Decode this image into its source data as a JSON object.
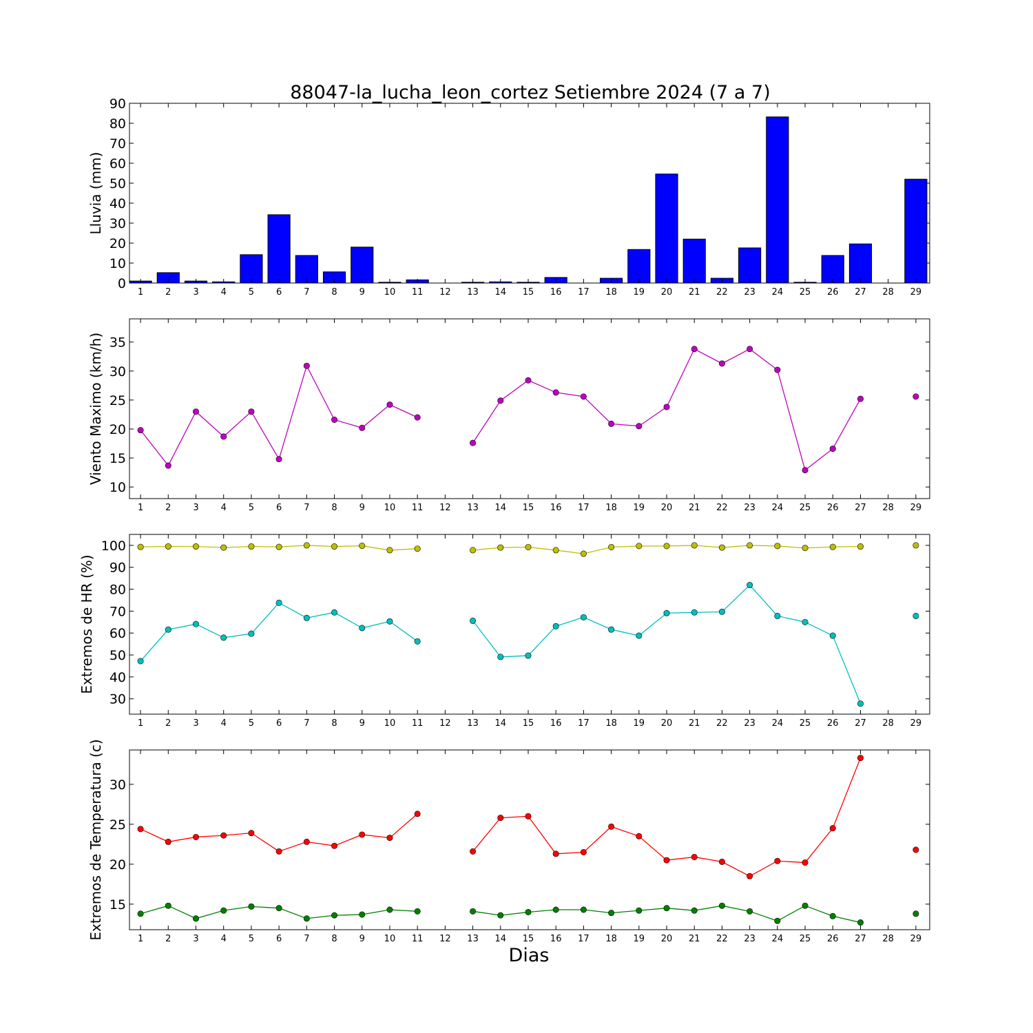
{
  "figure": {
    "title": "88047-la_lucha_leon_cortez Setiembre 2024  (7 a 7)",
    "xlabel": "Dias"
  },
  "chart_data": [
    {
      "type": "bar",
      "ylabel": "Lluvia (mm)",
      "ylim": [
        0,
        90
      ],
      "yticks": [
        0,
        10,
        20,
        30,
        40,
        50,
        60,
        70,
        80,
        90
      ],
      "xlim": [
        0.6,
        29.5
      ],
      "x": [
        1,
        2,
        3,
        4,
        5,
        6,
        7,
        8,
        9,
        10,
        11,
        12,
        13,
        14,
        15,
        16,
        17,
        18,
        19,
        20,
        21,
        22,
        23,
        24,
        25,
        26,
        27,
        28,
        29
      ],
      "series": [
        {
          "color": "#0000ff",
          "values": [
            1.0,
            5.2,
            1.0,
            0.6,
            14.2,
            34.2,
            13.8,
            5.6,
            18.0,
            0.4,
            1.6,
            null,
            0.4,
            0.6,
            0.4,
            2.8,
            null,
            2.4,
            16.8,
            54.6,
            22.0,
            2.4,
            17.6,
            83.2,
            0.4,
            13.8,
            19.6,
            null,
            52.0
          ]
        }
      ]
    },
    {
      "type": "line",
      "ylabel": "Viento Maximo (km/h)",
      "ylim": [
        8,
        39
      ],
      "yticks": [
        10,
        15,
        20,
        25,
        30,
        35
      ],
      "xlim": [
        0.6,
        29.5
      ],
      "x": [
        1,
        2,
        3,
        4,
        5,
        6,
        7,
        8,
        9,
        10,
        11,
        12,
        13,
        14,
        15,
        16,
        17,
        18,
        19,
        20,
        21,
        22,
        23,
        24,
        25,
        26,
        27,
        28,
        29
      ],
      "series": [
        {
          "color": "#bf00bf",
          "values": [
            19.8,
            13.7,
            23.0,
            18.7,
            23.0,
            14.8,
            30.9,
            21.6,
            20.2,
            24.2,
            22.0,
            null,
            17.6,
            24.9,
            28.4,
            26.3,
            25.6,
            20.9,
            20.5,
            23.8,
            33.8,
            31.3,
            33.8,
            30.2,
            12.9,
            16.6,
            25.2,
            null,
            25.6
          ]
        }
      ]
    },
    {
      "type": "line",
      "ylabel": "Extremos de HR (%)",
      "ylim": [
        23,
        105
      ],
      "yticks": [
        30,
        40,
        50,
        60,
        70,
        80,
        90,
        100
      ],
      "xlim": [
        0.6,
        29.5
      ],
      "x": [
        1,
        2,
        3,
        4,
        5,
        6,
        7,
        8,
        9,
        10,
        11,
        12,
        13,
        14,
        15,
        16,
        17,
        18,
        19,
        20,
        21,
        22,
        23,
        24,
        25,
        26,
        27,
        28,
        29
      ],
      "series": [
        {
          "color": "#bfbf00",
          "values": [
            99.3,
            99.5,
            99.5,
            99.0,
            99.5,
            99.3,
            100.0,
            99.5,
            99.8,
            97.8,
            98.5,
            null,
            97.8,
            99.0,
            99.2,
            97.8,
            96.2,
            99.2,
            99.7,
            99.7,
            100.0,
            99.0,
            100.0,
            99.7,
            98.8,
            99.3,
            99.5,
            null,
            100.0
          ]
        },
        {
          "color": "#00bfbf",
          "values": [
            47.2,
            61.6,
            64.1,
            57.9,
            59.7,
            73.8,
            66.9,
            69.4,
            62.3,
            65.3,
            56.2,
            null,
            65.6,
            49.1,
            49.7,
            63.1,
            67.2,
            61.6,
            58.8,
            69.1,
            69.4,
            69.7,
            81.9,
            67.8,
            65.0,
            58.8,
            27.8,
            null,
            67.8
          ]
        }
      ]
    },
    {
      "type": "line",
      "ylabel": "Extremos de Temperatura (c)",
      "ylim": [
        11.8,
        34.3
      ],
      "yticks": [
        15,
        20,
        25,
        30
      ],
      "xlim": [
        0.6,
        29.5
      ],
      "x": [
        1,
        2,
        3,
        4,
        5,
        6,
        7,
        8,
        9,
        10,
        11,
        12,
        13,
        14,
        15,
        16,
        17,
        18,
        19,
        20,
        21,
        22,
        23,
        24,
        25,
        26,
        27,
        28,
        29
      ],
      "series": [
        {
          "color": "#ff0000",
          "values": [
            24.4,
            22.8,
            23.4,
            23.6,
            23.9,
            21.6,
            22.8,
            22.3,
            23.7,
            23.3,
            26.3,
            null,
            21.6,
            25.8,
            26.0,
            21.3,
            21.5,
            24.7,
            23.5,
            20.5,
            20.9,
            20.3,
            18.5,
            20.4,
            20.2,
            24.5,
            33.3,
            null,
            21.8
          ]
        },
        {
          "color": "#008000",
          "values": [
            13.8,
            14.8,
            13.2,
            14.2,
            14.7,
            14.5,
            13.2,
            13.6,
            13.7,
            14.3,
            14.1,
            null,
            14.1,
            13.6,
            14.0,
            14.3,
            14.3,
            13.9,
            14.2,
            14.5,
            14.2,
            14.8,
            14.1,
            12.9,
            14.8,
            13.5,
            12.7,
            null,
            13.8
          ]
        }
      ]
    }
  ]
}
